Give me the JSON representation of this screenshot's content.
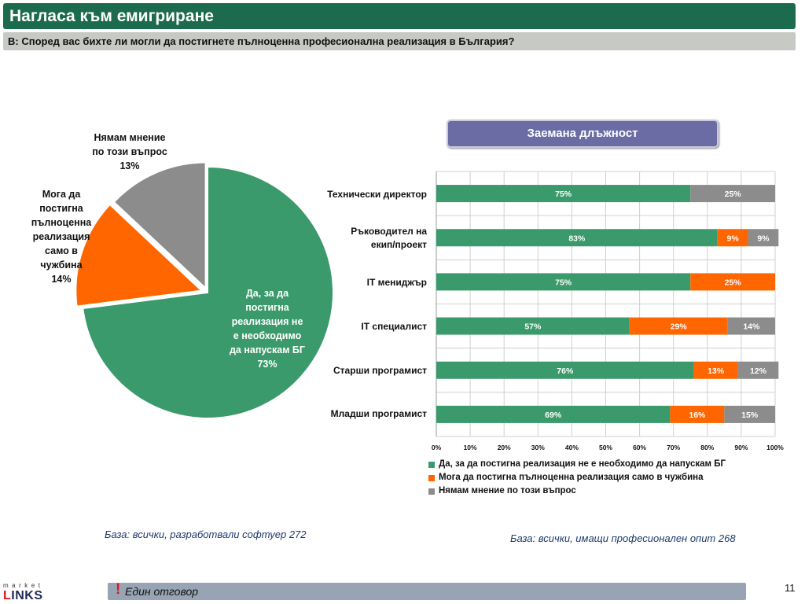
{
  "header": {
    "title": "Нагласа към емигриране",
    "question": "В: Според вас бихте ли могли да постигнете пълноценна професионална реализация в България?"
  },
  "colors": {
    "green": "#3a9a6b",
    "orange": "#ff6600",
    "gray": "#8c8c8c",
    "title_bar": "#1c6b4f",
    "panel": "#6a6ca3"
  },
  "chart_data": [
    {
      "type": "pie",
      "slices": [
        {
          "label": "Да, за да постигна реализация не е необходимо да напускам БГ",
          "value": 73,
          "color": "#3a9a6b"
        },
        {
          "label": "Мога да постигна пълноценна реализация само в чужбина",
          "value": 14,
          "color": "#ff6600"
        },
        {
          "label": "Нямам мнение по този въпрос",
          "value": 13,
          "color": "#8c8c8c"
        }
      ],
      "label_lines": {
        "green": [
          "Да, за да",
          "постигна",
          "реализация не",
          "е необходимо",
          "да напускам БГ",
          "73%"
        ],
        "orange": [
          "Мога да",
          "постигна",
          "пълноценна",
          "реализация",
          "само в",
          "чужбина",
          "14%"
        ],
        "gray": [
          "Нямам мнение",
          "по този въпрос",
          "13%"
        ]
      },
      "base_note": "База: всички, разработвали софтуер 272"
    },
    {
      "type": "bar",
      "stacked": true,
      "orientation": "horizontal",
      "title": "Заемана длъжност",
      "categories": [
        "Технически директор",
        "Ръководител на екип/проект",
        "IT мениджър",
        "IT специалист",
        "Старши програмист",
        "Младши програмист"
      ],
      "category_lines": [
        [
          "Технически директор"
        ],
        [
          "Ръководител на",
          "екип/проект"
        ],
        [
          "IT мениджър"
        ],
        [
          "IT специалист"
        ],
        [
          "Старши програмист"
        ],
        [
          "Младши програмист"
        ]
      ],
      "series": [
        {
          "name": "Да, за да постигна реализация не е необходимо да напускам БГ",
          "color": "#3a9a6b",
          "values": [
            75,
            83,
            75,
            57,
            76,
            69
          ]
        },
        {
          "name": "Мога да постигна пълноценна реализация само в чужбина",
          "color": "#ff6600",
          "values": [
            0,
            9,
            25,
            29,
            13,
            16
          ]
        },
        {
          "name": "Нямам мнение по този въпрос",
          "color": "#8c8c8c",
          "values": [
            25,
            9,
            0,
            14,
            12,
            15
          ]
        }
      ],
      "xlim": [
        0,
        100
      ],
      "xticks": [
        "0%",
        "10%",
        "20%",
        "30%",
        "40%",
        "50%",
        "60%",
        "70%",
        "80%",
        "90%",
        "100%"
      ],
      "grid": true,
      "legend_position": "bottom",
      "base_note": "База: всички, имащи професионален опит 268"
    }
  ],
  "footer": {
    "mark": "!",
    "note": "Един отговор",
    "page_number": "11",
    "logo_top": "market",
    "logo_first": "L",
    "logo_rest": "INKS"
  }
}
